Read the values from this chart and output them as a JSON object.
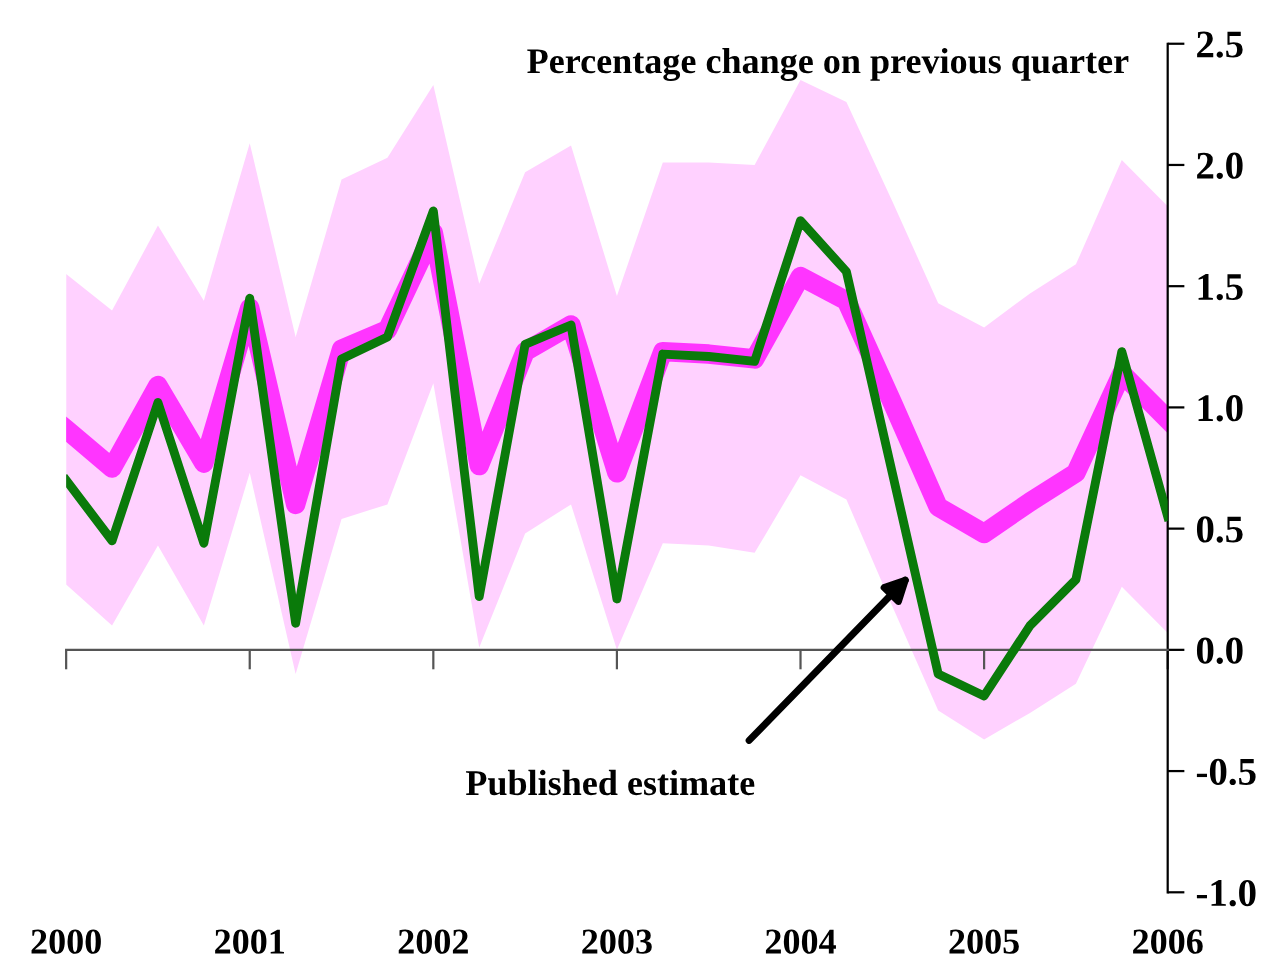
{
  "chart_data": {
    "type": "line",
    "title": "Percentage change on previous quarter",
    "x": [
      2000,
      2000.25,
      2000.5,
      2000.75,
      2001,
      2001.25,
      2001.5,
      2001.75,
      2002,
      2002.25,
      2002.5,
      2002.75,
      2003,
      2003.25,
      2003.5,
      2003.75,
      2004,
      2004.25,
      2004.5,
      2004.75,
      2005,
      2005.25,
      2005.5,
      2005.75,
      2006
    ],
    "series": [
      {
        "color": "#ff00ff",
        "values": [
          0.91,
          0.75,
          1.09,
          0.77,
          1.41,
          0.6,
          1.24,
          1.32,
          1.72,
          0.76,
          1.23,
          1.34,
          0.73,
          1.23,
          1.22,
          1.2,
          1.54,
          1.44,
          1.02,
          0.59,
          0.48,
          0.61,
          0.73,
          1.14,
          0.95
        ],
        "lower": [
          0.27,
          0.1,
          0.43,
          0.1,
          0.73,
          -0.1,
          0.54,
          0.6,
          1.1,
          0.01,
          0.48,
          0.6,
          0.0,
          0.44,
          0.43,
          0.4,
          0.72,
          0.62,
          0.18,
          -0.25,
          -0.37,
          -0.26,
          -0.14,
          0.26,
          0.07
        ],
        "upper": [
          1.55,
          1.4,
          1.75,
          1.44,
          2.09,
          1.29,
          1.94,
          2.03,
          2.33,
          1.51,
          1.97,
          2.08,
          1.46,
          2.01,
          2.01,
          2.0,
          2.35,
          2.26,
          1.85,
          1.43,
          1.33,
          1.47,
          1.59,
          2.02,
          1.83
        ]
      },
      {
        "color": "#0a7a0a",
        "values": [
          0.7,
          0.45,
          1.02,
          0.44,
          1.45,
          0.11,
          1.2,
          1.29,
          1.81,
          0.22,
          1.26,
          1.34,
          0.21,
          1.22,
          1.21,
          1.19,
          1.77,
          1.56,
          0.73,
          -0.1,
          -0.19,
          0.1,
          0.29,
          1.23,
          0.55
        ]
      }
    ],
    "annotations": [
      {
        "text": "Published estimate",
        "x": 2004.6,
        "y": 0.31
      }
    ],
    "xlim": [
      2000,
      2006
    ],
    "xticks": [
      2000,
      2001,
      2002,
      2003,
      2004,
      2005,
      2006
    ],
    "ylim": [
      -1.0,
      2.5
    ],
    "yticks": [
      {
        "value": -1,
        "label": "-1.0"
      },
      {
        "value": -0.5,
        "label": "-0.5"
      },
      {
        "value": 0,
        "label": "0.0"
      },
      {
        "value": 0.5,
        "label": "0.5"
      },
      {
        "value": 1,
        "label": "1.0"
      },
      {
        "value": 1.5,
        "label": "1.5"
      },
      {
        "value": 2,
        "label": "2.0"
      },
      {
        "value": 2.5,
        "label": "2.5"
      }
    ],
    "legend": false,
    "marker": "none",
    "line_style": "solid"
  }
}
